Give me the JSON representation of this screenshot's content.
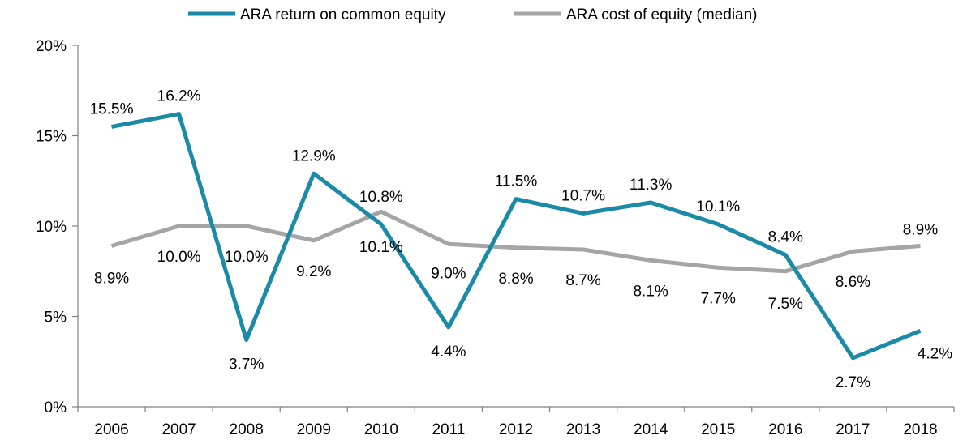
{
  "chart_data": {
    "type": "line",
    "title": "",
    "xlabel": "",
    "ylabel": "",
    "categories": [
      "2006",
      "2007",
      "2008",
      "2009",
      "2010",
      "2011",
      "2012",
      "2013",
      "2014",
      "2015",
      "2016",
      "2017",
      "2018"
    ],
    "ylim": [
      0,
      0.2
    ],
    "y_ticks": [
      0,
      0.05,
      0.1,
      0.15,
      0.2
    ],
    "y_tick_labels": [
      "0%",
      "5%",
      "10%",
      "15%",
      "20%"
    ],
    "grid": false,
    "legend_position": "top",
    "series": [
      {
        "name": "ARA return on common equity",
        "color": "#1a8aa6",
        "values": [
          0.155,
          0.162,
          0.037,
          0.129,
          0.101,
          0.044,
          0.115,
          0.107,
          0.113,
          0.101,
          0.084,
          0.027,
          0.042
        ],
        "labels": [
          "15.5%",
          "16.2%",
          "3.7%",
          "12.9%",
          "10.1%",
          "4.4%",
          "11.5%",
          "10.7%",
          "11.3%",
          "10.1%",
          "8.4%",
          "2.7%",
          "4.2%"
        ]
      },
      {
        "name": "ARA cost of equity (median)",
        "color": "#a5a5a5",
        "values": [
          0.089,
          0.1,
          0.1,
          0.092,
          0.108,
          0.09,
          0.088,
          0.087,
          0.081,
          0.077,
          0.075,
          0.086,
          0.089
        ],
        "labels": [
          "8.9%",
          "10.0%",
          "10.0%",
          "9.2%",
          "10.8%",
          "9.0%",
          "8.8%",
          "8.7%",
          "8.1%",
          "7.7%",
          "7.5%",
          "8.6%",
          "8.9%"
        ]
      }
    ]
  }
}
